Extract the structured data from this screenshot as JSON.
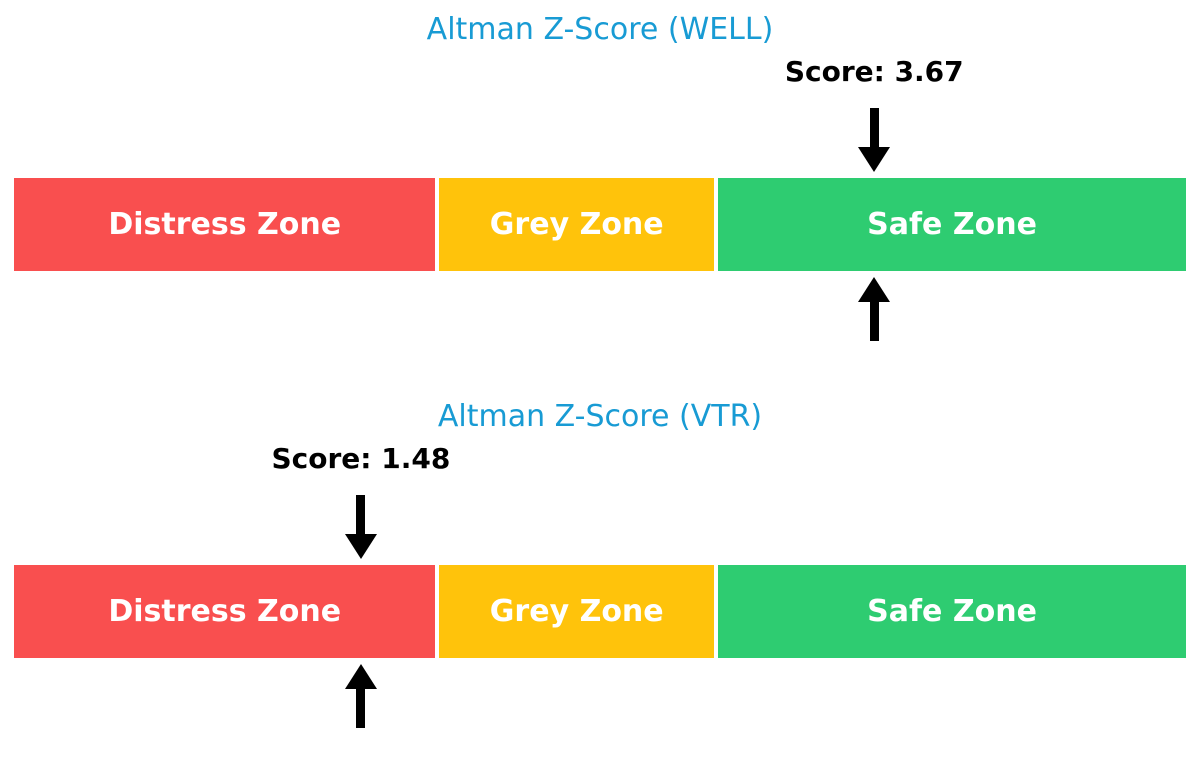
{
  "colors": {
    "title_blue": "#189bd4",
    "score_text": "#000000",
    "zone_label_text": "#ffffff",
    "arrow_black": "#000000",
    "distress_red": "#f94f4f",
    "grey_yellow": "#ffc30b",
    "safe_green": "#2ecc71"
  },
  "chart_data": [
    {
      "type": "bar",
      "subtype": "zone-gauge",
      "title": "Altman Z-Score (WELL)",
      "score": 3.67,
      "score_label": "Score: 3.67",
      "axis_range": [
        0,
        5
      ],
      "zones": [
        {
          "label": "Distress Zone",
          "start": 0,
          "end": 1.81,
          "color": "#f94f4f"
        },
        {
          "label": "Grey Zone",
          "start": 1.81,
          "end": 2.99,
          "color": "#ffc30b"
        },
        {
          "label": "Safe Zone",
          "start": 2.99,
          "end": 5.0,
          "color": "#2ecc71"
        }
      ],
      "marker": {
        "value": 3.67,
        "zone": "Safe Zone"
      }
    },
    {
      "type": "bar",
      "subtype": "zone-gauge",
      "title": "Altman Z-Score (VTR)",
      "score": 1.48,
      "score_label": "Score: 1.48",
      "axis_range": [
        0,
        5
      ],
      "zones": [
        {
          "label": "Distress Zone",
          "start": 0,
          "end": 1.81,
          "color": "#f94f4f"
        },
        {
          "label": "Grey Zone",
          "start": 1.81,
          "end": 2.99,
          "color": "#ffc30b"
        },
        {
          "label": "Safe Zone",
          "start": 2.99,
          "end": 5.0,
          "color": "#2ecc71"
        }
      ],
      "marker": {
        "value": 1.48,
        "zone": "Distress Zone"
      }
    }
  ]
}
